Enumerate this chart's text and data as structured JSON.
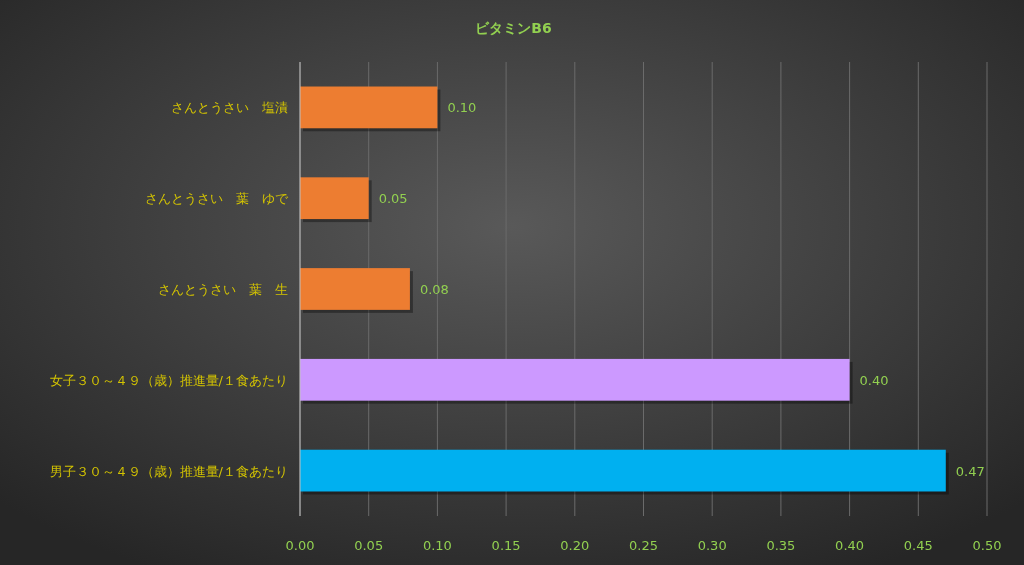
{
  "chart_data": {
    "type": "bar",
    "orientation": "horizontal",
    "title": "ビタミンB6",
    "categories": [
      "さんとうさい　塩漬",
      "さんとうさい　葉　ゆで",
      "さんとうさい　葉　生",
      "女子３０～４９（歳）推進量/１食あたり",
      "男子３０～４９（歳）推進量/１食あたり"
    ],
    "values": [
      0.1,
      0.05,
      0.08,
      0.4,
      0.47
    ],
    "colors": [
      "#ed7d31",
      "#ed7d31",
      "#ed7d31",
      "#cc99ff",
      "#00b0f0"
    ],
    "data_labels": true,
    "value_labels": [
      "0.10",
      "0.05",
      "0.08",
      "0.40",
      "0.47"
    ],
    "xlim": [
      0,
      0.5
    ],
    "xticks": [
      {
        "value": 0,
        "label": "0.00"
      },
      {
        "value": 0.05,
        "label": "0.05"
      },
      {
        "value": 0.1,
        "label": "0.10"
      },
      {
        "value": 0.15,
        "label": "0.15"
      },
      {
        "value": 0.2,
        "label": "0.20"
      },
      {
        "value": 0.25,
        "label": "0.25"
      },
      {
        "value": 0.3,
        "label": "0.30"
      },
      {
        "value": 0.35,
        "label": "0.35"
      },
      {
        "value": 0.4,
        "label": "0.40"
      },
      {
        "value": 0.45,
        "label": "0.45"
      },
      {
        "value": 0.5,
        "label": "0.50"
      }
    ],
    "grid": "x"
  }
}
